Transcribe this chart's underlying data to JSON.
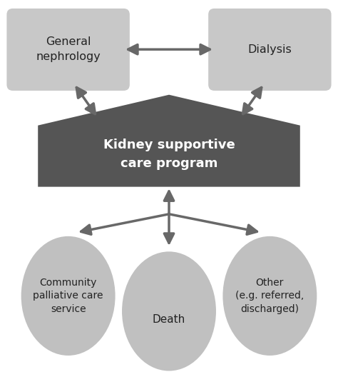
{
  "bg_color": "#ffffff",
  "box_color": "#c8c8c8",
  "pentagon_color": "#555555",
  "ellipse_color": "#c0c0c0",
  "arrow_color": "#686868",
  "text_color_dark": "#222222",
  "text_color_white": "#ffffff",
  "box1_text": "General\nnephrology",
  "box2_text": "Dialysis",
  "pentagon_text": "Kidney supportive\ncare program",
  "circle1_text": "Community\npalliative care\nservice",
  "circle2_text": "Death",
  "circle3_text": "Other\n(e.g. referred,\ndischarged)",
  "figsize": [
    4.74,
    5.28
  ],
  "dpi": 100
}
